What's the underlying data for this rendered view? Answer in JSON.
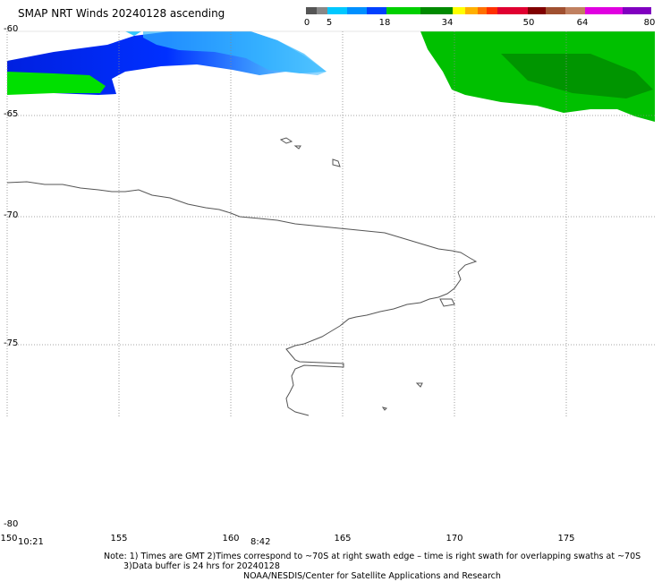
{
  "title": "SMAP NRT Winds 20240128 ascending",
  "colorbar": {
    "labels": [
      "0",
      "5",
      "18",
      "34",
      "50",
      "64",
      "80"
    ],
    "colors": [
      "#555555",
      "#00c8ff",
      "#0040ff",
      "#00c000",
      "#ffe000",
      "#ff8000",
      "#ff0000",
      "#c00020",
      "#8b4513",
      "#b87040",
      "#e000e0",
      "#8000c0"
    ]
  },
  "map": {
    "lat_labels": [
      "-60",
      "-65",
      "-70",
      "-75",
      "-80"
    ],
    "lon_labels": [
      "150",
      "155",
      "160",
      "165",
      "170",
      "175"
    ],
    "time_labels": [
      "10:21",
      "8:42"
    ],
    "land_outline_color": "#555555",
    "gridline_style": "dotted"
  },
  "notes": [
    "Note: 1) Times are GMT 2)Times correspond to ~70S at right swath edge – time is right swath for overlapping swaths at ~70S",
    "3)Data buffer is 24 hrs for 20240128",
    "NOAA/NESDIS/Center for Satellite Applications and Research"
  ]
}
